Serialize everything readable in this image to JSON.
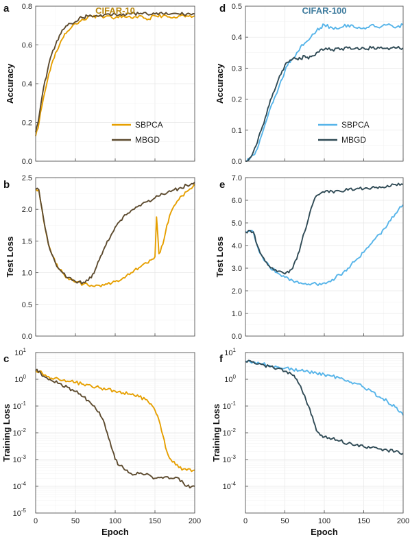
{
  "colors": {
    "sbpca_cifar10": "#E69F00",
    "mbgd_cifar10": "#5C4A2E",
    "sbpca_cifar100": "#56B4E9",
    "mbgd_cifar100": "#2F4A55",
    "title_cifar10": "#B8860B",
    "title_cifar100": "#3F7C9E"
  },
  "chart_data": [
    {
      "panel": "a",
      "type": "line",
      "dataset_title": "CIFAR-10",
      "xlabel": "",
      "ylabel": "Accuracy",
      "xlim": [
        0,
        200
      ],
      "ylim": [
        0,
        0.8
      ],
      "yscale": "linear",
      "yticks": [
        "0.0",
        "0.2",
        "0.4",
        "0.6",
        "0.8"
      ],
      "yticks_values": [
        0,
        0.2,
        0.4,
        0.6,
        0.8
      ],
      "xticks_values": [
        0,
        50,
        100,
        150,
        200
      ],
      "grid": true,
      "legend": "bottom-right",
      "series": [
        {
          "name": "SBPCA",
          "color_key": "sbpca_cifar10",
          "x": [
            0,
            3,
            6,
            10,
            15,
            20,
            25,
            30,
            35,
            40,
            45,
            50,
            55,
            60,
            65,
            70,
            75,
            80,
            85,
            90,
            100,
            110,
            120,
            130,
            140,
            150,
            160,
            170,
            180,
            190,
            200
          ],
          "y": [
            0.13,
            0.17,
            0.25,
            0.33,
            0.42,
            0.5,
            0.56,
            0.6,
            0.64,
            0.67,
            0.69,
            0.71,
            0.72,
            0.73,
            0.74,
            0.75,
            0.74,
            0.75,
            0.74,
            0.75,
            0.74,
            0.75,
            0.74,
            0.75,
            0.73,
            0.75,
            0.75,
            0.74,
            0.75,
            0.75,
            0.75
          ]
        },
        {
          "name": "MBGD",
          "color_key": "mbgd_cifar10",
          "x": [
            0,
            3,
            6,
            10,
            15,
            20,
            25,
            30,
            35,
            40,
            45,
            50,
            55,
            60,
            65,
            70,
            75,
            80,
            85,
            90,
            100,
            110,
            120,
            130,
            140,
            150,
            160,
            170,
            180,
            190,
            200
          ],
          "y": [
            0.15,
            0.2,
            0.28,
            0.38,
            0.47,
            0.55,
            0.6,
            0.65,
            0.68,
            0.7,
            0.71,
            0.72,
            0.74,
            0.74,
            0.75,
            0.75,
            0.75,
            0.75,
            0.75,
            0.76,
            0.76,
            0.76,
            0.76,
            0.76,
            0.76,
            0.76,
            0.76,
            0.76,
            0.76,
            0.76,
            0.76
          ]
        }
      ]
    },
    {
      "panel": "b",
      "type": "line",
      "dataset_title": "",
      "xlabel": "",
      "ylabel": "Test Loss",
      "xlim": [
        0,
        200
      ],
      "ylim": [
        0,
        2.5
      ],
      "yscale": "linear",
      "yticks": [
        "0.0",
        "0.5",
        "1.0",
        "1.5",
        "2.0",
        "2.5"
      ],
      "yticks_values": [
        0,
        0.5,
        1,
        1.5,
        2,
        2.5
      ],
      "xticks_values": [
        0,
        50,
        100,
        150,
        200
      ],
      "grid": true,
      "legend": "none",
      "series": [
        {
          "name": "SBPCA",
          "color_key": "sbpca_cifar10",
          "x": [
            0,
            4,
            8,
            12,
            16,
            20,
            25,
            30,
            40,
            50,
            60,
            70,
            80,
            90,
            100,
            110,
            120,
            130,
            140,
            145,
            150,
            152,
            155,
            160,
            165,
            170,
            180,
            190,
            200
          ],
          "y": [
            2.32,
            2.31,
            2.0,
            1.7,
            1.45,
            1.3,
            1.15,
            1.05,
            0.92,
            0.85,
            0.82,
            0.8,
            0.8,
            0.82,
            0.86,
            0.92,
            1.0,
            1.08,
            1.15,
            1.2,
            1.25,
            1.88,
            1.3,
            1.45,
            1.75,
            1.95,
            2.15,
            2.28,
            2.4
          ]
        },
        {
          "name": "MBGD",
          "color_key": "mbgd_cifar10",
          "x": [
            0,
            4,
            8,
            12,
            16,
            20,
            25,
            30,
            40,
            50,
            60,
            70,
            75,
            80,
            85,
            90,
            95,
            100,
            105,
            110,
            120,
            130,
            140,
            150,
            160,
            170,
            180,
            190,
            200
          ],
          "y": [
            2.32,
            2.31,
            2.0,
            1.7,
            1.45,
            1.3,
            1.15,
            1.05,
            0.92,
            0.86,
            0.85,
            0.92,
            1.05,
            1.2,
            1.35,
            1.5,
            1.6,
            1.72,
            1.8,
            1.88,
            1.98,
            2.06,
            2.12,
            2.18,
            2.24,
            2.28,
            2.33,
            2.38,
            2.43
          ]
        }
      ]
    },
    {
      "panel": "c",
      "type": "line",
      "dataset_title": "",
      "xlabel": "Epoch",
      "ylabel": "Training Loss",
      "xlim": [
        0,
        200
      ],
      "ylim": [
        1e-05,
        10
      ],
      "yscale": "log",
      "yticks": [
        "10",
        "10",
        "10",
        "10",
        "10",
        "10",
        "10"
      ],
      "yticks_exp": [
        "1",
        "0",
        "-1",
        "-2",
        "-3",
        "-4",
        "-5"
      ],
      "yticks_values": [
        10,
        1,
        0.1,
        0.01,
        0.001,
        0.0001,
        1e-05
      ],
      "xticks": [
        "0",
        "50",
        "100",
        "150",
        "200"
      ],
      "xticks_values": [
        0,
        50,
        100,
        150,
        200
      ],
      "grid": true,
      "legend": "none",
      "series": [
        {
          "name": "SBPCA",
          "color_key": "sbpca_cifar10",
          "x": [
            0,
            5,
            10,
            20,
            30,
            40,
            50,
            60,
            70,
            80,
            90,
            100,
            110,
            120,
            130,
            140,
            145,
            150,
            155,
            160,
            165,
            170,
            180,
            190,
            200
          ],
          "y": [
            2.1,
            2.0,
            1.4,
            1.1,
            0.95,
            0.85,
            0.75,
            0.65,
            0.56,
            0.48,
            0.42,
            0.36,
            0.31,
            0.27,
            0.22,
            0.17,
            0.12,
            0.07,
            0.03,
            0.008,
            0.002,
            0.001,
            0.0005,
            0.0004,
            0.0004
          ]
        },
        {
          "name": "MBGD",
          "color_key": "mbgd_cifar10",
          "x": [
            0,
            5,
            10,
            20,
            30,
            40,
            50,
            60,
            70,
            80,
            85,
            90,
            95,
            100,
            105,
            110,
            115,
            120,
            130,
            140,
            150,
            160,
            170,
            180,
            190,
            200
          ],
          "y": [
            2.1,
            2.0,
            1.3,
            0.9,
            0.7,
            0.5,
            0.35,
            0.22,
            0.12,
            0.06,
            0.03,
            0.01,
            0.003,
            0.001,
            0.0006,
            0.0005,
            0.0004,
            0.0003,
            0.0003,
            0.0003,
            0.0002,
            0.0002,
            0.0002,
            0.0002,
            0.0001,
            0.0001
          ]
        }
      ]
    },
    {
      "panel": "d",
      "type": "line",
      "dataset_title": "CIFAR-100",
      "xlabel": "",
      "ylabel": "Accuracy",
      "xlim": [
        0,
        200
      ],
      "ylim": [
        0,
        0.5
      ],
      "yscale": "linear",
      "yticks": [
        "0.0",
        "0.1",
        "0.2",
        "0.3",
        "0.4",
        "0.5"
      ],
      "yticks_values": [
        0,
        0.1,
        0.2,
        0.3,
        0.4,
        0.5
      ],
      "xticks_values": [
        0,
        50,
        100,
        150,
        200
      ],
      "grid": true,
      "legend": "bottom-right",
      "series": [
        {
          "name": "SBPCA",
          "color_key": "sbpca_cifar100",
          "x": [
            0,
            5,
            10,
            15,
            20,
            25,
            30,
            35,
            40,
            45,
            50,
            55,
            60,
            65,
            70,
            75,
            80,
            85,
            90,
            95,
            100,
            110,
            120,
            130,
            140,
            150,
            160,
            170,
            180,
            190,
            200
          ],
          "y": [
            0.0,
            0.005,
            0.02,
            0.04,
            0.08,
            0.12,
            0.16,
            0.19,
            0.22,
            0.26,
            0.29,
            0.32,
            0.33,
            0.35,
            0.37,
            0.38,
            0.39,
            0.41,
            0.42,
            0.43,
            0.44,
            0.43,
            0.43,
            0.44,
            0.43,
            0.43,
            0.44,
            0.43,
            0.44,
            0.43,
            0.44
          ]
        },
        {
          "name": "MBGD",
          "color_key": "mbgd_cifar100",
          "x": [
            0,
            5,
            10,
            15,
            20,
            25,
            30,
            35,
            40,
            45,
            50,
            55,
            60,
            65,
            70,
            75,
            80,
            85,
            90,
            95,
            100,
            110,
            120,
            130,
            140,
            150,
            160,
            170,
            180,
            190,
            200
          ],
          "y": [
            0.0,
            0.01,
            0.03,
            0.06,
            0.1,
            0.14,
            0.18,
            0.22,
            0.25,
            0.28,
            0.31,
            0.32,
            0.33,
            0.33,
            0.33,
            0.34,
            0.33,
            0.34,
            0.35,
            0.36,
            0.36,
            0.36,
            0.36,
            0.365,
            0.365,
            0.365,
            0.365,
            0.365,
            0.365,
            0.365,
            0.365
          ]
        }
      ]
    },
    {
      "panel": "e",
      "type": "line",
      "dataset_title": "",
      "xlabel": "",
      "ylabel": "Test Loss",
      "xlim": [
        0,
        200
      ],
      "ylim": [
        0,
        7
      ],
      "yscale": "linear",
      "yticks": [
        "0.0",
        "1.0",
        "2.0",
        "3.0",
        "4.0",
        "5.0",
        "6.0",
        "7.0"
      ],
      "yticks_values": [
        0,
        1,
        2,
        3,
        4,
        5,
        6,
        7
      ],
      "xticks_values": [
        0,
        50,
        100,
        150,
        200
      ],
      "grid": true,
      "legend": "none",
      "series": [
        {
          "name": "SBPCA",
          "color_key": "sbpca_cifar100",
          "x": [
            0,
            10,
            15,
            20,
            25,
            30,
            40,
            50,
            60,
            70,
            80,
            90,
            100,
            110,
            120,
            130,
            140,
            150,
            160,
            170,
            180,
            190,
            200
          ],
          "y": [
            4.6,
            4.6,
            4.0,
            3.6,
            3.3,
            3.1,
            2.8,
            2.6,
            2.45,
            2.35,
            2.3,
            2.3,
            2.35,
            2.5,
            2.7,
            3.0,
            3.35,
            3.7,
            4.1,
            4.5,
            4.9,
            5.4,
            5.8
          ]
        },
        {
          "name": "MBGD",
          "color_key": "mbgd_cifar100",
          "x": [
            0,
            10,
            15,
            20,
            25,
            30,
            40,
            50,
            55,
            60,
            65,
            70,
            75,
            80,
            85,
            90,
            95,
            100,
            110,
            120,
            130,
            140,
            150,
            160,
            170,
            180,
            190,
            200
          ],
          "y": [
            4.6,
            4.6,
            4.0,
            3.6,
            3.3,
            3.1,
            2.85,
            2.75,
            2.8,
            3.0,
            3.4,
            4.0,
            4.6,
            5.2,
            5.8,
            6.2,
            6.3,
            6.35,
            6.4,
            6.4,
            6.45,
            6.5,
            6.5,
            6.55,
            6.6,
            6.65,
            6.7,
            6.7
          ]
        }
      ]
    },
    {
      "panel": "f",
      "type": "line",
      "dataset_title": "",
      "xlabel": "Epoch",
      "ylabel": "Training Loss",
      "xlim": [
        0,
        200
      ],
      "ylim": [
        1e-05,
        10
      ],
      "yscale": "log",
      "yticks": [
        "10",
        "10",
        "10",
        "10",
        "10",
        "10"
      ],
      "yticks_exp": [
        "1",
        "0",
        "-1",
        "-2",
        "-3",
        "-4"
      ],
      "yticks_values": [
        10,
        1,
        0.1,
        0.01,
        0.001,
        0.0001
      ],
      "xticks": [
        "0",
        "50",
        "100",
        "150",
        "200"
      ],
      "xticks_values": [
        0,
        50,
        100,
        150,
        200
      ],
      "grid": true,
      "legend": "none",
      "series": [
        {
          "name": "SBPCA",
          "color_key": "sbpca_cifar100",
          "x": [
            0,
            10,
            20,
            30,
            40,
            50,
            60,
            70,
            80,
            90,
            100,
            110,
            120,
            130,
            140,
            150,
            160,
            170,
            180,
            190,
            195,
            200
          ],
          "y": [
            4.6,
            4.5,
            3.8,
            3.3,
            2.9,
            2.6,
            2.3,
            2.1,
            1.9,
            1.7,
            1.5,
            1.3,
            1.1,
            0.9,
            0.7,
            0.5,
            0.35,
            0.22,
            0.15,
            0.09,
            0.06,
            0.045
          ]
        },
        {
          "name": "MBGD",
          "color_key": "mbgd_cifar100",
          "x": [
            0,
            10,
            20,
            30,
            40,
            50,
            60,
            65,
            70,
            75,
            80,
            85,
            90,
            95,
            100,
            110,
            120,
            130,
            140,
            150,
            160,
            170,
            180,
            190,
            200
          ],
          "y": [
            4.6,
            4.5,
            3.6,
            3.0,
            2.5,
            2.0,
            1.4,
            1.0,
            0.55,
            0.25,
            0.1,
            0.04,
            0.012,
            0.008,
            0.007,
            0.006,
            0.005,
            0.004,
            0.0035,
            0.003,
            0.0028,
            0.0025,
            0.0022,
            0.002,
            0.0017
          ]
        }
      ]
    }
  ]
}
